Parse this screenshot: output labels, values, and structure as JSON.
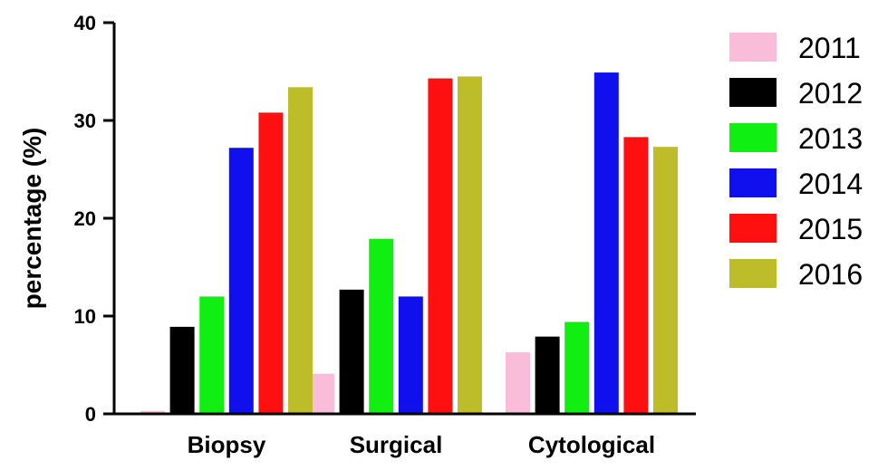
{
  "chart_data": {
    "type": "bar",
    "title": "",
    "xlabel": "",
    "ylabel": "percentage (%)",
    "ylim": [
      0,
      40
    ],
    "yticks": [
      "0",
      "10",
      "20",
      "30",
      "40"
    ],
    "categories": [
      "Biopsy",
      "Surgical",
      "Cytological"
    ],
    "series": [
      {
        "name": "2011",
        "color": "#f9bcd9",
        "values": [
          0.3,
          4.1,
          6.3
        ]
      },
      {
        "name": "2012",
        "color": "#000000",
        "values": [
          8.9,
          12.7,
          7.9
        ]
      },
      {
        "name": "2013",
        "color": "#11ee11",
        "values": [
          12.0,
          17.9,
          9.4
        ]
      },
      {
        "name": "2014",
        "color": "#1010ee",
        "values": [
          27.2,
          12.0,
          34.9
        ]
      },
      {
        "name": "2015",
        "color": "#ff1010",
        "values": [
          30.8,
          34.3,
          28.3
        ]
      },
      {
        "name": "2016",
        "color": "#bdbd2a",
        "values": [
          33.4,
          34.5,
          27.3
        ]
      }
    ],
    "grid": false,
    "legend": "right"
  }
}
